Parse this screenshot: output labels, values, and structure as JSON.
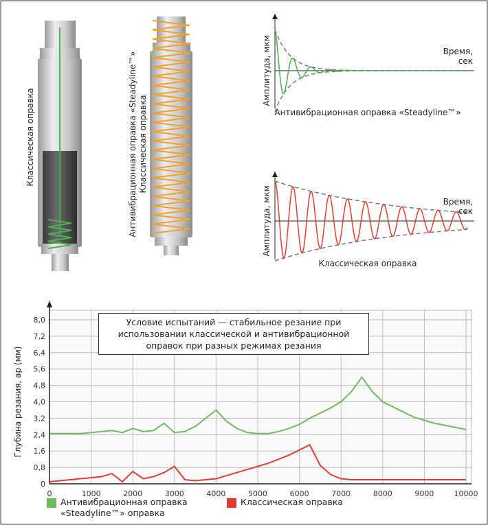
{
  "illustrations": {
    "classic_label": "Классическая оправка",
    "steadyline_label": "Антивибрационная оправка «Steadyline™»",
    "steadyline_sub": "Классическая оправка"
  },
  "vibration_charts": [
    {
      "y_label": "Амплитуда, мкм",
      "x_label": [
        "Время,",
        "сек"
      ],
      "caption": "Антивибрационная оправка «Steadyline™»"
    },
    {
      "y_label": "Амплитуда, мкм",
      "x_label": [
        "Время,",
        "сек"
      ],
      "caption": "Классическая оправка"
    }
  ],
  "chart_data": {
    "type": "line",
    "annotation": "Условие испытаний — стабильное резание при использовании классической и антивибрационной оправок при разных режимах резания",
    "y_label": "Глубина резания, ар (мм)",
    "x": [
      0,
      250,
      500,
      750,
      1000,
      1250,
      1500,
      1750,
      2000,
      2250,
      2500,
      2750,
      3000,
      3250,
      3500,
      3750,
      4000,
      4250,
      4500,
      4750,
      5000,
      5250,
      5500,
      5750,
      6000,
      6250,
      6500,
      6750,
      7000,
      7250,
      7500,
      7750,
      8000,
      8250,
      8500,
      8750,
      9000,
      9250,
      9500,
      9750,
      10000
    ],
    "series": [
      {
        "name": "Антивибрационная оправка «Steadyline™» оправка",
        "color": "#6dbb5e",
        "values": [
          2.45,
          2.45,
          2.45,
          2.45,
          2.5,
          2.55,
          2.6,
          2.5,
          2.7,
          2.55,
          2.6,
          2.95,
          2.5,
          2.55,
          2.8,
          3.2,
          3.6,
          3.05,
          2.7,
          2.5,
          2.45,
          2.45,
          2.55,
          2.7,
          2.9,
          3.2,
          3.45,
          3.7,
          4.0,
          4.5,
          5.2,
          4.5,
          4.0,
          3.75,
          3.5,
          3.25,
          3.1,
          2.95,
          2.85,
          2.75,
          2.65
        ]
      },
      {
        "name": "Классическая оправка",
        "color": "#e03c31",
        "values": [
          0.1,
          0.15,
          0.2,
          0.25,
          0.3,
          0.35,
          0.5,
          0.1,
          0.6,
          0.25,
          0.35,
          0.55,
          0.85,
          0.2,
          0.15,
          0.2,
          0.25,
          0.4,
          0.55,
          0.7,
          0.85,
          1.0,
          1.2,
          1.4,
          1.65,
          1.9,
          0.9,
          0.45,
          0.25,
          0.2,
          0.2,
          0.2,
          0.2,
          0.2,
          0.2,
          0.2,
          0.2,
          0.2,
          0.2,
          0.2,
          0.2
        ]
      }
    ],
    "xlim": [
      0,
      10000
    ],
    "xticks": [
      0,
      1000,
      2000,
      3000,
      4000,
      5000,
      6000,
      7000,
      8000,
      9000,
      10000
    ],
    "ylim": [
      0,
      8.0
    ],
    "yticks": [
      0,
      {
        "value": 0.8,
        "label": "0,8"
      },
      {
        "value": 1.6,
        "label": "1,6"
      },
      {
        "value": 2.4,
        "label": "2,4"
      },
      {
        "value": 3.2,
        "label": "3,2"
      },
      {
        "value": 4.0,
        "label": "4,0"
      },
      {
        "value": 4.8,
        "label": "4,8"
      },
      {
        "value": 5.6,
        "label": "5,6"
      },
      {
        "value": 6.4,
        "label": "6,4"
      },
      {
        "value": 7.2,
        "label": "7,2"
      },
      {
        "value": 8.0,
        "label": "8,0"
      }
    ],
    "grid": true
  }
}
